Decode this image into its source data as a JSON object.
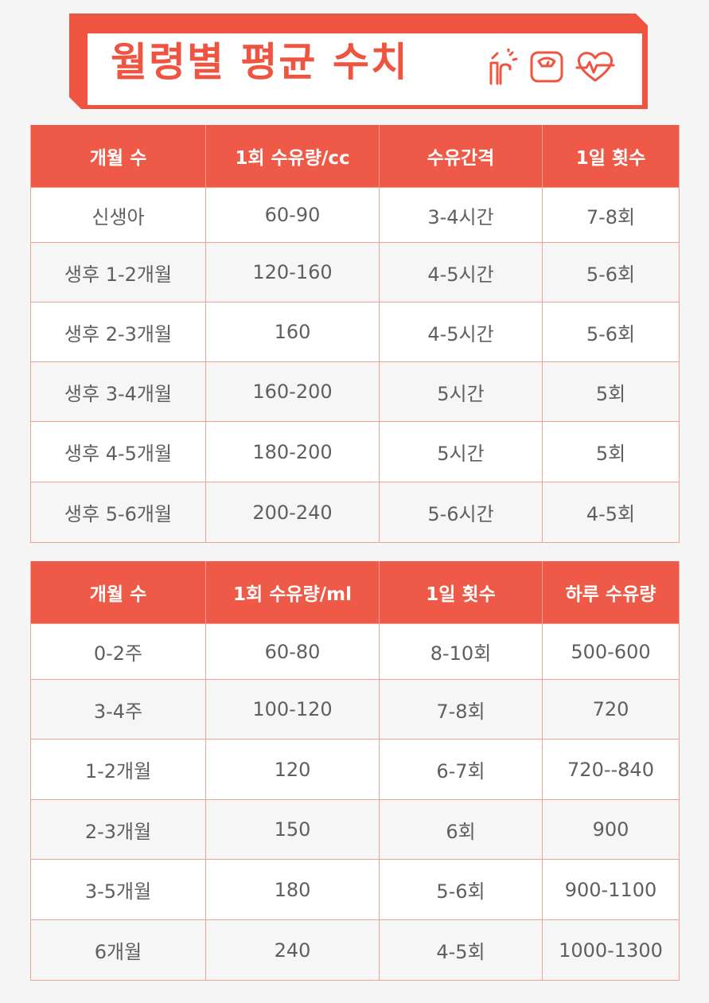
{
  "banner": {
    "title": "월령별 평균 수치",
    "icons": [
      "baby-bottle-icon",
      "scale-icon",
      "heartbeat-icon"
    ],
    "accent_color": "#ee5440"
  },
  "table1": {
    "headers": [
      "개월 수",
      "1회 수유량/cc",
      "수유간격",
      "1일 횟수"
    ],
    "rows": [
      [
        "신생아",
        "60-90",
        "3-4시간",
        "7-8회"
      ],
      [
        "생후 1-2개월",
        "120-160",
        "4-5시간",
        "5-6회"
      ],
      [
        "생후 2-3개월",
        "160",
        "4-5시간",
        "5-6회"
      ],
      [
        "생후 3-4개월",
        "160-200",
        "5시간",
        "5회"
      ],
      [
        "생후 4-5개월",
        "180-200",
        "5시간",
        "5회"
      ],
      [
        "생후 5-6개월",
        "200-240",
        "5-6시간",
        "4-5회"
      ]
    ]
  },
  "table2": {
    "headers": [
      "개월 수",
      "1회 수유량/ml",
      "1일 횟수",
      "하루 수유량"
    ],
    "rows": [
      [
        "0-2주",
        "60-80",
        "8-10회",
        "500-600"
      ],
      [
        "3-4주",
        "100-120",
        "7-8회",
        "720"
      ],
      [
        "1-2개월",
        "120",
        "6-7회",
        "720--840"
      ],
      [
        "2-3개월",
        "150",
        "6회",
        "900"
      ],
      [
        "3-5개월",
        "180",
        "5-6회",
        "900-1100"
      ],
      [
        "6개월",
        "240",
        "4-5회",
        "1000-1300"
      ]
    ]
  }
}
